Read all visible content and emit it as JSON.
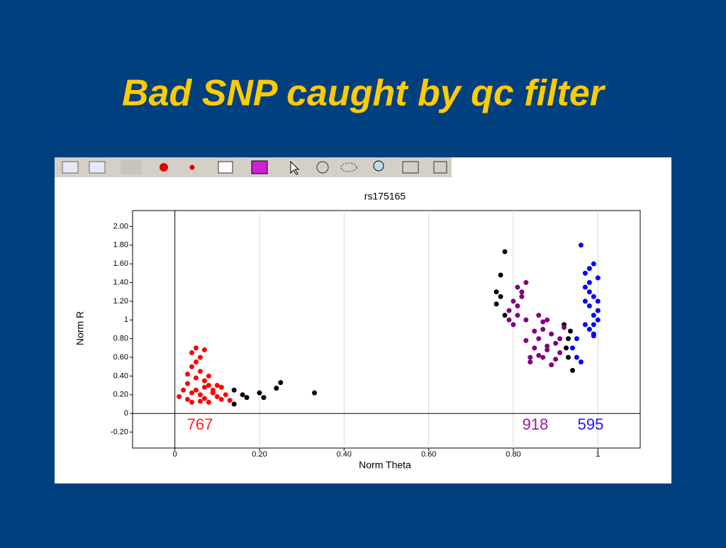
{
  "chart_data": {
    "type": "scatter",
    "slide_title": "Bad SNP caught by qc filter",
    "title": "rs175165",
    "xlabel": "Norm Theta",
    "ylabel": "Norm R",
    "xlim": [
      -0.1,
      1.1
    ],
    "ylim": [
      -0.37,
      2.17
    ],
    "xticks": [
      0,
      {
        "value": 0.2,
        "label": "0.20"
      },
      {
        "value": 0.4,
        "label": "0.40"
      },
      {
        "value": 0.6,
        "label": "0.60"
      },
      {
        "value": 0.8,
        "label": "0.80"
      },
      1
    ],
    "yticks": [
      {
        "value": 2,
        "label": "2.00"
      },
      {
        "value": 1.8,
        "label": "1.80"
      },
      {
        "value": 1.6,
        "label": "1.60"
      },
      {
        "value": 1.4,
        "label": "1.40"
      },
      {
        "value": 1.2,
        "label": "1.20"
      },
      1,
      {
        "value": 0.8,
        "label": "0.80"
      },
      {
        "value": 0.6,
        "label": "0.60"
      },
      {
        "value": 0.4,
        "label": "0.40"
      },
      {
        "value": 0.2,
        "label": "0.20"
      },
      0,
      {
        "value": -0.2,
        "label": "-0.20"
      }
    ],
    "grid": true,
    "series": [
      {
        "color": "#ff0000",
        "x": [
          0.01,
          0.03,
          0.04,
          0.05,
          0.06,
          0.07,
          0.08,
          0.04,
          0.05,
          0.06,
          0.03,
          0.07,
          0.09,
          0.1,
          0.11,
          0.12,
          0.08,
          0.06,
          0.04,
          0.05,
          0.07,
          0.09,
          0.11,
          0.13,
          0.02,
          0.03,
          0.08,
          0.1,
          0.06,
          0.05,
          0.04,
          0.07
        ],
        "y": [
          0.18,
          0.15,
          0.22,
          0.25,
          0.2,
          0.28,
          0.3,
          0.5,
          0.55,
          0.6,
          0.42,
          0.35,
          0.25,
          0.18,
          0.15,
          0.2,
          0.12,
          0.13,
          0.65,
          0.7,
          0.68,
          0.22,
          0.28,
          0.14,
          0.25,
          0.32,
          0.4,
          0.3,
          0.45,
          0.38,
          0.12,
          0.16
        ]
      },
      {
        "color": "#000000",
        "x": [
          0.14,
          0.14,
          0.16,
          0.17,
          0.2,
          0.21,
          0.24,
          0.25,
          0.33,
          0.78,
          0.77,
          0.76,
          0.76,
          0.77,
          0.78,
          0.92,
          0.93,
          0.93,
          0.94,
          0.925,
          0.935
        ],
        "y": [
          0.1,
          0.25,
          0.2,
          0.17,
          0.22,
          0.17,
          0.27,
          0.33,
          0.22,
          1.73,
          1.48,
          1.3,
          1.17,
          1.25,
          1.05,
          0.95,
          0.8,
          0.6,
          0.46,
          0.7,
          0.88
        ]
      },
      {
        "color": "#800080",
        "x": [
          0.79,
          0.8,
          0.81,
          0.82,
          0.83,
          0.79,
          0.8,
          0.81,
          0.82,
          0.81,
          0.83,
          0.84,
          0.85,
          0.86,
          0.87,
          0.88,
          0.89,
          0.9,
          0.91,
          0.84,
          0.86,
          0.88,
          0.9,
          0.87,
          0.85,
          0.89,
          0.91,
          0.92,
          0.86,
          0.88,
          0.83,
          0.87
        ],
        "y": [
          1.1,
          1.2,
          1.05,
          1.3,
          1.4,
          1.0,
          0.95,
          1.15,
          1.25,
          1.35,
          1.0,
          0.6,
          0.7,
          0.8,
          0.9,
          1.0,
          0.85,
          0.75,
          0.65,
          0.55,
          0.62,
          0.72,
          0.58,
          0.98,
          0.88,
          0.52,
          0.8,
          0.92,
          1.05,
          0.68,
          0.78,
          0.6
        ]
      },
      {
        "color": "#0000ff",
        "x": [
          0.96,
          0.97,
          0.98,
          0.99,
          1.0,
          0.97,
          0.98,
          0.99,
          1.0,
          0.98,
          0.99,
          1.0,
          0.97,
          0.98,
          0.99,
          0.95,
          0.94,
          0.95,
          0.96,
          0.98,
          1.0,
          0.99,
          0.97,
          0.99
        ],
        "y": [
          1.8,
          1.5,
          1.55,
          1.6,
          1.45,
          1.35,
          1.3,
          1.25,
          1.2,
          1.15,
          1.05,
          1.0,
          0.95,
          0.9,
          0.85,
          0.8,
          0.7,
          0.6,
          0.55,
          1.4,
          1.1,
          0.95,
          1.2,
          0.83
        ]
      }
    ],
    "annotations": [
      {
        "text": "767",
        "color": "#ff2020"
      },
      {
        "text": "918",
        "color": "#9a1a9a"
      },
      {
        "text": "595",
        "color": "#1a1aff"
      }
    ]
  }
}
